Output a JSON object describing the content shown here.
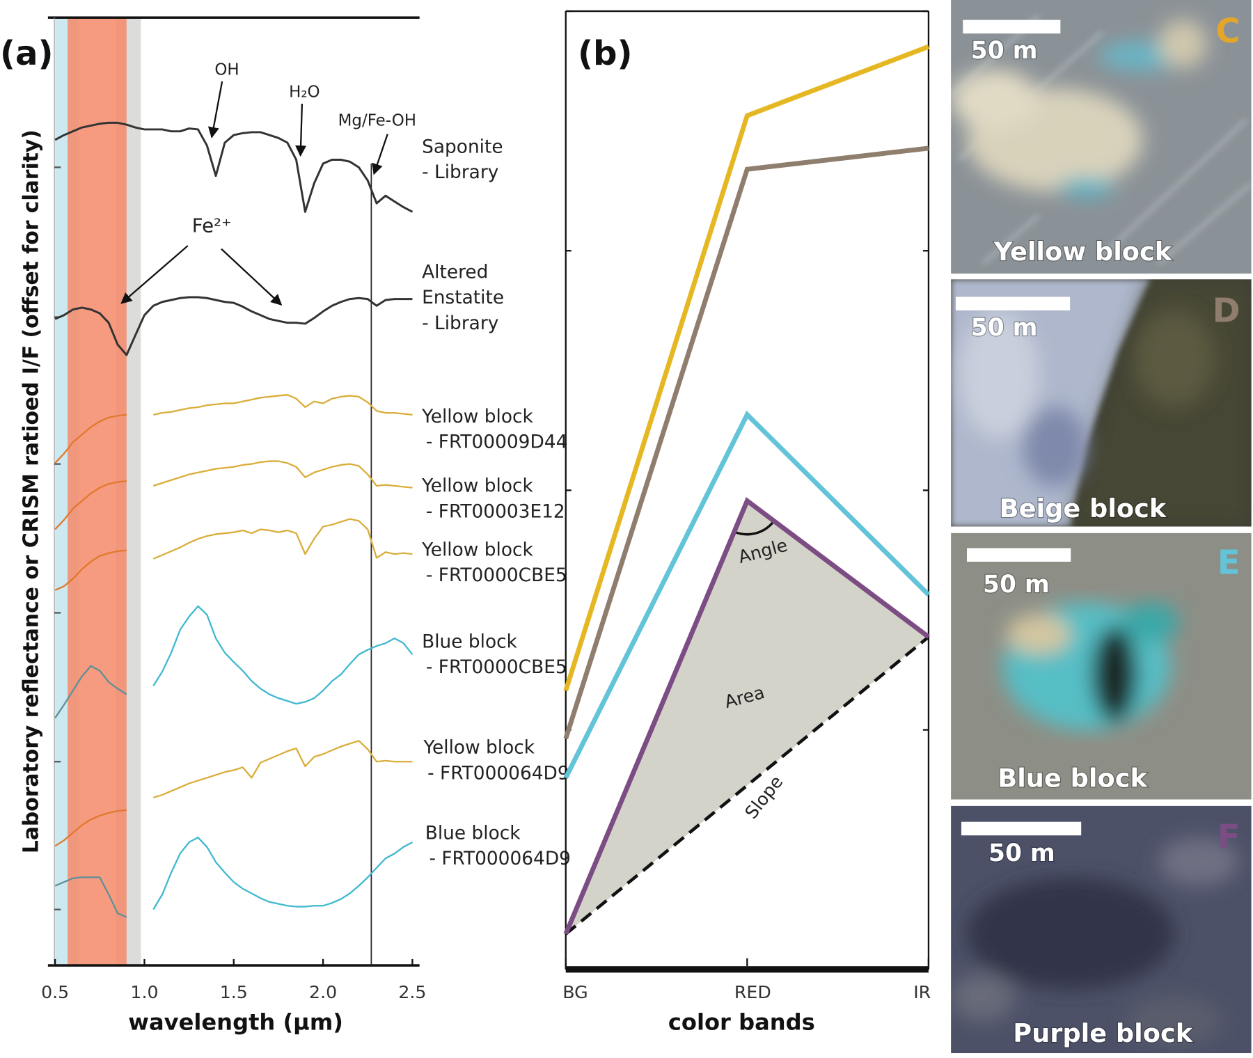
{
  "chart_data": [
    {
      "type": "line",
      "panel_label": "(a)",
      "y_label": "Laboratory reflectance or CRISM ratioed I/F (offset for clarity)",
      "x_label": "wavelength (µm)",
      "xlim": [
        0.46,
        2.54
      ],
      "xticks": [
        0.5,
        {
          "value": 1,
          "label": "1.0"
        },
        1.5,
        {
          "value": 2,
          "label": "2.0"
        },
        2.5
      ],
      "ylim": [
        0,
        100
      ],
      "yticks": [
        5.9,
        21.5,
        37.2,
        52.9,
        68.4,
        84.2
      ],
      "spans": [
        {
          "xmin": 0.5,
          "xmax": 0.63,
          "color": "#c3e5f0"
        },
        {
          "xmin": 0.84,
          "xmax": 0.98,
          "color": "#d6d6d4"
        },
        {
          "xmin": 0.57,
          "xmax": 0.9,
          "color": "#f48a68"
        }
      ],
      "reference_line_x": 2.27,
      "annotations": [
        "OH",
        "H₂O",
        "Mg/Fe-OH",
        "Fe²⁺"
      ],
      "x": [
        0.5,
        0.55,
        0.6,
        0.65,
        0.7,
        0.75,
        0.8,
        0.85,
        0.9,
        0.95,
        1.0,
        1.05,
        1.1,
        1.15,
        1.2,
        1.25,
        1.3,
        1.35,
        1.4,
        1.45,
        1.5,
        1.55,
        1.6,
        1.65,
        1.7,
        1.75,
        1.8,
        1.85,
        1.9,
        1.95,
        2.0,
        2.05,
        2.1,
        2.15,
        2.2,
        2.25,
        2.3,
        2.35,
        2.4,
        2.45,
        2.5
      ],
      "series": [
        {
          "label_lines": [
            "Saponite",
            "- Library"
          ],
          "color": "#333333",
          "values": [
            87.1,
            87.6,
            88.0,
            88.4,
            88.6,
            88.8,
            88.9,
            88.9,
            88.7,
            88.4,
            88.2,
            88.2,
            88.2,
            88.0,
            88.0,
            88.3,
            88.2,
            86.5,
            83.3,
            86.8,
            87.6,
            87.8,
            87.9,
            87.9,
            87.6,
            87.3,
            86.8,
            85.0,
            79.5,
            82.5,
            84.6,
            85.0,
            85.0,
            84.8,
            84.2,
            82.8,
            80.4,
            81.2,
            80.6,
            80.0,
            79.5
          ]
        },
        {
          "label_lines": [
            "Altered",
            "Enstatite",
            "- Library"
          ],
          "color": "#333333",
          "values": [
            68.2,
            68.6,
            69.2,
            69.4,
            69.2,
            68.8,
            67.8,
            65.5,
            64.4,
            66.5,
            68.6,
            69.6,
            70.0,
            70.2,
            70.4,
            70.5,
            70.5,
            70.4,
            70.2,
            70.0,
            69.9,
            69.5,
            69.0,
            68.6,
            68.2,
            68.0,
            67.8,
            67.8,
            67.7,
            68.3,
            69.0,
            69.6,
            70.0,
            70.3,
            70.4,
            70.3,
            69.6,
            70.2,
            70.3,
            70.3,
            70.3
          ]
        },
        {
          "label_lines": [
            "Yellow block",
            "- FRT00009D44"
          ],
          "color": "#d9ad38",
          "vnir_color": "#e0792e",
          "values": [
            53.0,
            54.0,
            55.2,
            56.0,
            56.8,
            57.4,
            57.8,
            58.0,
            58.1,
            null,
            null,
            58.1,
            58.3,
            58.4,
            58.6,
            58.8,
            58.9,
            59.1,
            59.2,
            59.3,
            59.3,
            59.5,
            59.7,
            59.9,
            60.0,
            60.1,
            60.2,
            59.8,
            58.9,
            59.5,
            59.3,
            59.8,
            60.0,
            60.1,
            60.0,
            59.4,
            58.5,
            58.3,
            58.3,
            58.2,
            58.1
          ]
        },
        {
          "label_lines": [
            "Yellow block",
            "- FRT00003E12"
          ],
          "color": "#d9ad38",
          "vnir_color": "#e0792e",
          "values": [
            46.0,
            47.0,
            48.2,
            49.0,
            49.8,
            50.4,
            50.8,
            51.0,
            51.1,
            null,
            null,
            50.6,
            50.9,
            51.2,
            51.5,
            51.8,
            52.0,
            52.2,
            52.4,
            52.5,
            52.6,
            52.8,
            52.9,
            53.1,
            53.2,
            53.2,
            53.0,
            52.6,
            51.5,
            52.0,
            52.3,
            52.6,
            52.8,
            52.9,
            52.7,
            51.8,
            50.6,
            50.7,
            50.6,
            50.5,
            50.4
          ]
        },
        {
          "label_lines": [
            "Yellow block",
            "- FRT0000CBE5"
          ],
          "color": "#d9ad38",
          "vnir_color": "#e0792e",
          "values": [
            39.6,
            40.0,
            40.8,
            41.8,
            42.6,
            43.2,
            43.5,
            43.7,
            43.8,
            null,
            null,
            42.9,
            43.3,
            43.7,
            44.1,
            44.6,
            45.0,
            45.3,
            45.5,
            45.6,
            45.7,
            45.9,
            45.6,
            46.0,
            45.9,
            45.7,
            45.9,
            45.6,
            43.4,
            45.0,
            46.3,
            46.5,
            46.8,
            47.1,
            46.9,
            46.0,
            43.0,
            43.6,
            43.4,
            43.5,
            43.4
          ]
        },
        {
          "label_lines": [
            "Blue block",
            "- FRT0000CBE5"
          ],
          "color": "#3fb8d0",
          "vnir_color": "#5f8f98",
          "values": [
            26.1,
            27.5,
            29.0,
            30.5,
            31.6,
            31.1,
            29.9,
            29.2,
            28.6,
            null,
            null,
            29.5,
            31.0,
            33.0,
            35.4,
            36.8,
            37.9,
            37.0,
            34.5,
            33.0,
            32.0,
            31.1,
            30.0,
            29.2,
            28.6,
            28.2,
            27.9,
            27.6,
            27.8,
            28.2,
            29.0,
            30.0,
            30.7,
            31.8,
            32.8,
            33.3,
            33.7,
            34.0,
            34.5,
            34.0,
            32.8
          ]
        },
        {
          "label_lines": [
            "Yellow block",
            "- FRT000064D9"
          ],
          "color": "#d9ad38",
          "vnir_color": "#e0792e",
          "values": [
            12.6,
            13.2,
            14.0,
            14.8,
            15.4,
            15.8,
            16.1,
            16.3,
            16.4,
            null,
            null,
            17.7,
            18.0,
            18.4,
            18.8,
            19.2,
            19.5,
            19.8,
            20.1,
            20.4,
            20.6,
            20.9,
            19.8,
            21.4,
            21.8,
            22.2,
            22.6,
            22.9,
            21.0,
            22.0,
            22.3,
            22.7,
            23.1,
            23.4,
            23.7,
            22.8,
            21.5,
            21.6,
            21.5,
            21.5,
            21.5
          ]
        },
        {
          "label_lines": [
            "Blue block",
            "- FRT000064D9"
          ],
          "color": "#3fb8d0",
          "vnir_color": "#5f8f98",
          "values": [
            8.4,
            8.8,
            9.2,
            9.3,
            9.3,
            9.3,
            7.5,
            5.5,
            5.1,
            null,
            null,
            5.9,
            7.5,
            9.8,
            11.8,
            13.0,
            13.5,
            12.5,
            10.9,
            9.8,
            8.8,
            8.1,
            7.6,
            7.1,
            6.7,
            6.5,
            6.3,
            6.2,
            6.2,
            6.3,
            6.3,
            6.6,
            7.0,
            7.6,
            8.4,
            9.3,
            10.3,
            11.3,
            11.8,
            12.5,
            13.0
          ]
        }
      ]
    },
    {
      "type": "line",
      "panel_label": "(b)",
      "x_label": "color bands",
      "categories": [
        "BG",
        "RED",
        "IR"
      ],
      "ylim": [
        0,
        100
      ],
      "yticks": [
        0,
        25,
        50,
        75,
        100
      ],
      "annotations": [
        "Angle",
        "Area",
        "Slope"
      ],
      "series": [
        {
          "color": "#e5b823",
          "values": [
            29.1,
            89.1,
            96.3
          ]
        },
        {
          "color": "#8f7d6e",
          "values": [
            24.1,
            83.5,
            85.7
          ]
        },
        {
          "color": "#63c3d8",
          "values": [
            20.0,
            57.9,
            39.1
          ]
        },
        {
          "color": "#7b4d84",
          "values": [
            3.7,
            48.9,
            34.7
          ],
          "area_fill": "#d4d3c9"
        }
      ]
    }
  ],
  "images": [
    {
      "panel": "C",
      "panel_color": "#e3a62a",
      "scale_bar": "50 m",
      "caption": "Yellow block"
    },
    {
      "panel": "D",
      "panel_color": "#8f7d6e",
      "scale_bar": "50 m",
      "caption": "Beige block"
    },
    {
      "panel": "E",
      "panel_color": "#63c3d8",
      "scale_bar": "50 m",
      "caption": "Blue block"
    },
    {
      "panel": "F",
      "panel_color": "#7b4d84",
      "scale_bar": "50 m",
      "caption": "Purple block"
    }
  ]
}
